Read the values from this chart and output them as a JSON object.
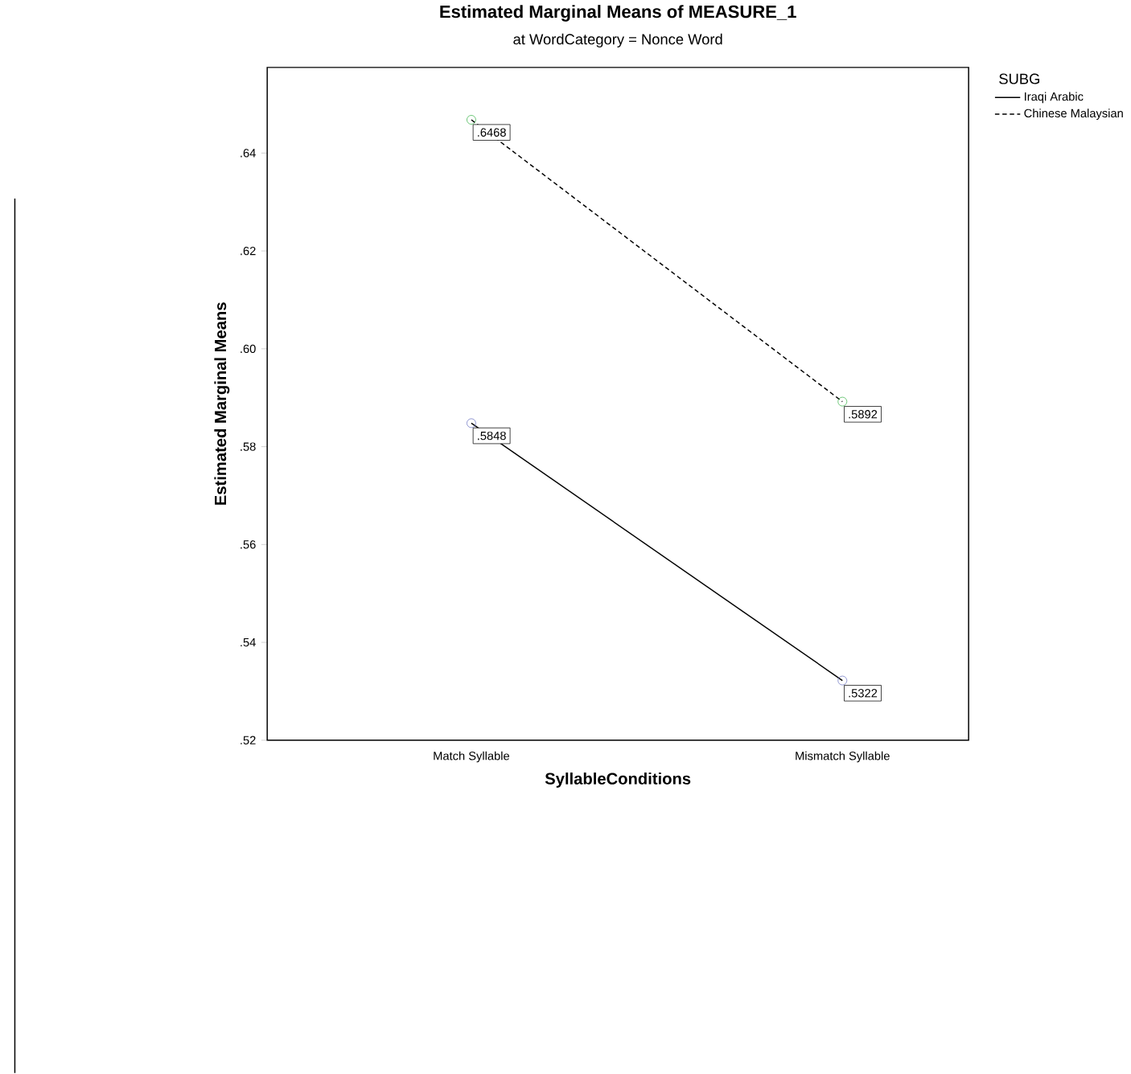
{
  "chart_data": {
    "type": "line",
    "title": "Estimated Marginal Means of MEASURE_1",
    "subtitle": "at WordCategory = Nonce Word",
    "xlabel": "SyllableConditions",
    "ylabel": "Estimated Marginal Means",
    "legend_title": "SUBG",
    "categories": [
      "Match Syllable",
      "Mismatch Syllable"
    ],
    "series": [
      {
        "name": "Iraqi Arabic",
        "color": "#000000",
        "colors": [
          "#6b73c1",
          "#6b73c1"
        ],
        "line_style": "solid",
        "values": [
          0.5848,
          0.5322
        ],
        "value_labels": [
          ".5848",
          ".5322"
        ]
      },
      {
        "name": "Chinese Malaysian",
        "color": "#000000",
        "colors": [
          "#3cb44b",
          "#3cb44b"
        ],
        "line_style": "dashed",
        "values": [
          0.6468,
          0.5892
        ],
        "value_labels": [
          ".6468",
          ".5892"
        ]
      }
    ],
    "ylim": [
      0.52,
      0.6575
    ],
    "yticks": [
      {
        "value": 0.52,
        "label": ".52"
      },
      {
        "value": 0.54,
        "label": ".54"
      },
      {
        "value": 0.56,
        "label": ".56"
      },
      {
        "value": 0.58,
        "label": ".58"
      },
      {
        "value": 0.6,
        "label": ".60"
      },
      {
        "value": 0.62,
        "label": ".62"
      },
      {
        "value": 0.64,
        "label": ".64"
      }
    ],
    "marker": "circle",
    "legend": "top right",
    "grid": false
  }
}
